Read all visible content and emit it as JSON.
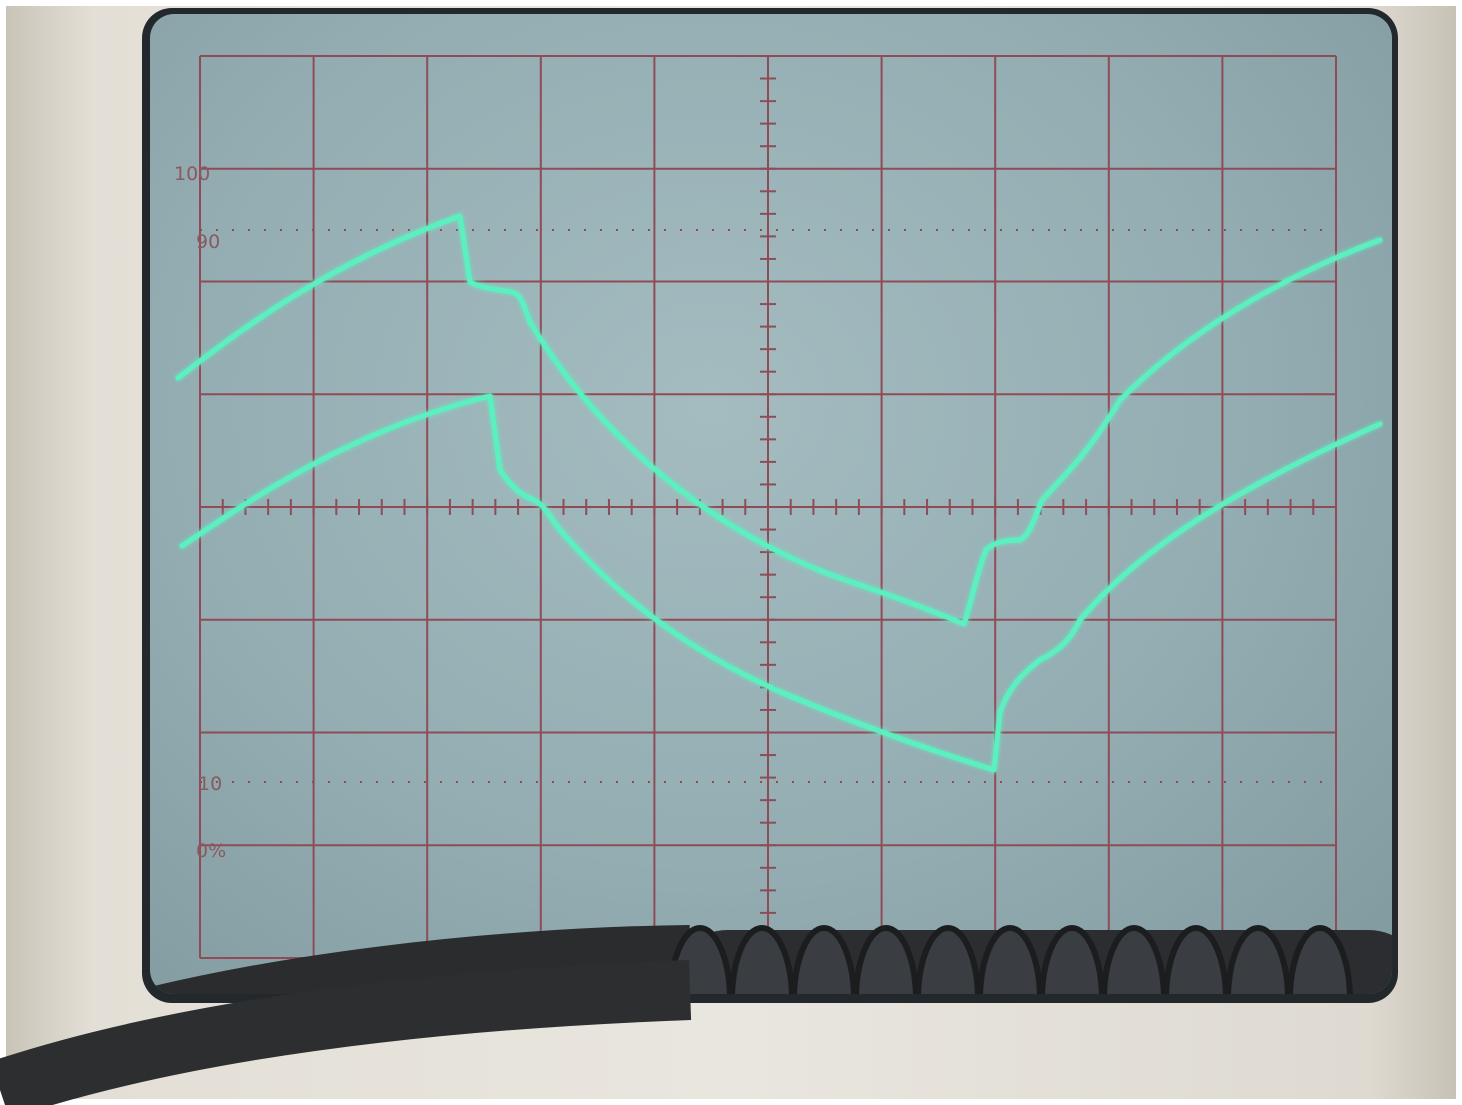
{
  "graticule": {
    "labels": [
      "100",
      "90",
      "10",
      "0%"
    ],
    "grid_color": "#8f4c57",
    "divisions_horizontal": 10,
    "divisions_vertical": 8
  },
  "traces": {
    "color": "#5cf0c0",
    "count": 2
  },
  "icons": {
    "probe_cable": "coiled-probe-cable"
  }
}
